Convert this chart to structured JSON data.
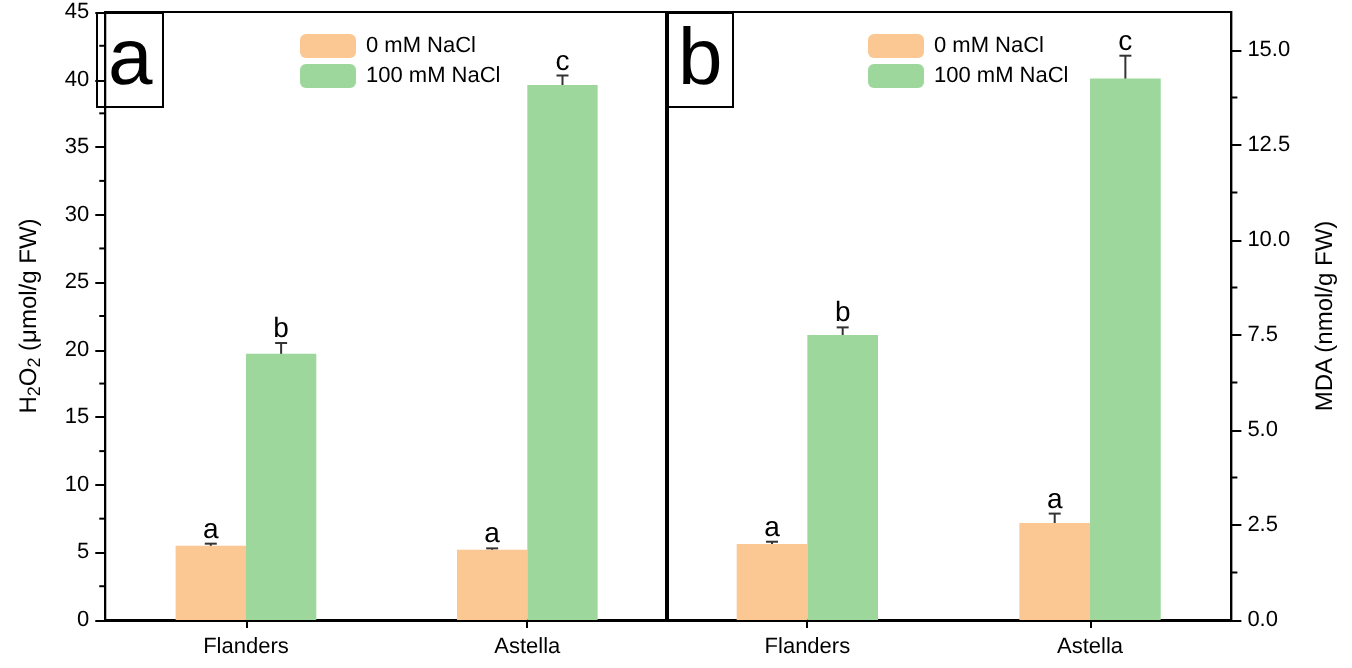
{
  "chart_data": [
    {
      "type": "bar",
      "title": "a",
      "categories": [
        "Flanders",
        "Astella"
      ],
      "ylabel": "H$_{2}$O$_{2}$ (μmol/g FW)",
      "ylim": [
        0,
        45
      ],
      "yticks": [
        0,
        5,
        10,
        15,
        20,
        25,
        30,
        35,
        40,
        45
      ],
      "legend": "top",
      "grid": false,
      "series": [
        {
          "name": "0 mM NaCl",
          "color": "#fbc792",
          "values": [
            5.5,
            5.2
          ],
          "errors": [
            0.15,
            0.1
          ],
          "value_labels": [
            "a",
            "a"
          ]
        },
        {
          "name": "100 mM NaCl",
          "color": "#9dd79b",
          "values": [
            19.7,
            39.6
          ],
          "errors": [
            0.8,
            0.7
          ],
          "value_labels": [
            "b",
            "c"
          ]
        }
      ]
    },
    {
      "type": "bar",
      "title": "b",
      "categories": [
        "Flanders",
        "Astella"
      ],
      "y2label": "MDA (nmol/g FW)",
      "y2lim": [
        0,
        16
      ],
      "y2ticks": [
        {
          "value": 0,
          "label": "0.0"
        },
        2.5,
        {
          "value": 5,
          "label": "5.0"
        },
        7.5,
        {
          "value": 10,
          "label": "10.0"
        },
        12.5,
        {
          "value": 15,
          "label": "15.0"
        }
      ],
      "legend": "top",
      "grid": false,
      "series": [
        {
          "name": "0 mM NaCl",
          "color": "#fbc792",
          "axis": "y2",
          "values": [
            2.0,
            2.55
          ],
          "errors": [
            0.06,
            0.25
          ],
          "value_labels": [
            "a",
            "a"
          ]
        },
        {
          "name": "100 mM NaCl",
          "color": "#9dd79b",
          "axis": "y2",
          "values": [
            7.5,
            14.25
          ],
          "errors": [
            0.2,
            0.6
          ],
          "value_labels": [
            "b",
            "c"
          ]
        }
      ]
    }
  ]
}
